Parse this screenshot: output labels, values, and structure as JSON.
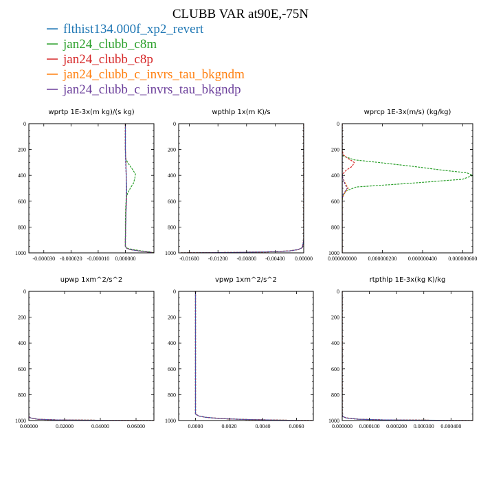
{
  "title": "CLUBB VAR at90E,-75N",
  "legend": [
    {
      "label": "flthist134.000f_xp2_revert",
      "color": "#1f77b4"
    },
    {
      "label": "jan24_clubb_c8m",
      "color": "#2ca02c"
    },
    {
      "label": "jan24_clubb_c8p",
      "color": "#d62728"
    },
    {
      "label": "jan24_clubb_c_invrs_tau_bkgndm",
      "color": "#ff7f0e"
    },
    {
      "label": "jan24_clubb_c_invrs_tau_bkgndp",
      "color": "#6a3d9a"
    }
  ],
  "chart_data": [
    {
      "type": "line",
      "title": "wprtp  1E-3x(m kg)/(s kg)",
      "xlim": [
        -3.55e-05,
        1.05e-05
      ],
      "ylim": [
        0,
        1000
      ],
      "y_inverted": true,
      "xticks": [
        -3e-05,
        -2e-05,
        -1e-05,
        0
      ],
      "xtick_labels": [
        "-0.000030",
        "-0.000020",
        "-0.000010",
        "0.000000"
      ],
      "yticks": [
        0,
        200,
        400,
        600,
        800,
        1000
      ],
      "series": [
        {
          "y": [
            0,
            100,
            200,
            300,
            400,
            500,
            600,
            700,
            800,
            900,
            950,
            965,
            975,
            985,
            992,
            1000
          ],
          "values": [
            0,
            0,
            0,
            2e-07,
            3e-07,
            5e-07,
            4e-07,
            2e-07,
            1e-07,
            0,
            0,
            5e-07,
            2e-06,
            5e-06,
            8e-06,
            1.05e-05
          ]
        },
        {
          "y": [
            0,
            100,
            200,
            260,
            300,
            350,
            390,
            420,
            460,
            500,
            540,
            580,
            650,
            750,
            850,
            950,
            965,
            975,
            985,
            992,
            1000
          ],
          "values": [
            0,
            0,
            0,
            0,
            8e-07,
            2.5e-06,
            3.7e-06,
            3.5e-06,
            3e-06,
            1.8e-06,
            8e-07,
            3e-07,
            1e-07,
            0,
            0,
            0,
            8e-07,
            3e-06,
            6e-06,
            9e-06,
            1.05e-05
          ]
        },
        {
          "y": [
            0,
            100,
            200,
            300,
            400,
            500,
            600,
            700,
            800,
            900,
            950,
            965,
            975,
            985,
            992,
            1000
          ],
          "values": [
            0,
            0,
            0,
            2e-07,
            3e-07,
            4e-07,
            4e-07,
            2e-07,
            1e-07,
            0,
            0,
            5e-07,
            2e-06,
            5e-06,
            8e-06,
            1.05e-05
          ]
        },
        {
          "y": [
            0,
            100,
            200,
            300,
            400,
            500,
            600,
            700,
            800,
            900,
            950,
            965,
            975,
            985,
            992,
            1000
          ],
          "values": [
            0,
            0,
            0,
            2e-07,
            3e-07,
            4e-07,
            3e-07,
            2e-07,
            1e-07,
            0,
            0,
            5e-07,
            2e-06,
            5e-06,
            8e-06,
            1.05e-05
          ]
        },
        {
          "y": [
            0,
            100,
            200,
            300,
            400,
            500,
            600,
            700,
            800,
            900,
            950,
            965,
            975,
            985,
            992,
            1000
          ],
          "values": [
            0,
            0,
            0,
            1e-07,
            3e-07,
            4e-07,
            3e-07,
            2e-07,
            1e-07,
            0,
            0,
            5e-07,
            2e-06,
            5e-06,
            8e-06,
            1.05e-05
          ]
        }
      ]
    },
    {
      "type": "line",
      "title": "wpthlp  1x(m K)/s",
      "xlim": [
        -0.0175,
        0
      ],
      "ylim": [
        0,
        1000
      ],
      "y_inverted": true,
      "xticks": [
        -0.016,
        -0.012,
        -0.008,
        -0.004,
        0
      ],
      "xtick_labels": [
        "-0.01600",
        "-0.01200",
        "-0.00800",
        "-0.00400",
        "0.00000"
      ],
      "yticks": [
        0,
        200,
        400,
        600,
        800,
        1000
      ],
      "series": [
        {
          "y": [
            0,
            200,
            400,
            600,
            800,
            900,
            960,
            975,
            985,
            992,
            997,
            1000
          ],
          "values": [
            0,
            0,
            0,
            0,
            0,
            0,
            -0.0002,
            -0.0008,
            -0.002,
            -0.005,
            -0.01,
            -0.0172
          ]
        },
        {
          "y": [
            0,
            200,
            400,
            600,
            800,
            900,
            960,
            975,
            985,
            992,
            997,
            1000
          ],
          "values": [
            0,
            0,
            0,
            0,
            0,
            0,
            -0.0002,
            -0.0008,
            -0.002,
            -0.005,
            -0.01,
            -0.0172
          ]
        },
        {
          "y": [
            0,
            200,
            400,
            600,
            800,
            900,
            960,
            975,
            985,
            992,
            997,
            1000
          ],
          "values": [
            0,
            0,
            0,
            0,
            0,
            0,
            -0.0002,
            -0.0008,
            -0.002,
            -0.005,
            -0.01,
            -0.0172
          ]
        },
        {
          "y": [
            0,
            200,
            400,
            600,
            800,
            900,
            960,
            975,
            985,
            992,
            997,
            1000
          ],
          "values": [
            0,
            0,
            0,
            0,
            0,
            0,
            -0.0002,
            -0.0008,
            -0.002,
            -0.005,
            -0.01,
            -0.0172
          ]
        },
        {
          "y": [
            0,
            200,
            400,
            600,
            800,
            900,
            960,
            975,
            985,
            992,
            997,
            1000
          ],
          "values": [
            0,
            0,
            0,
            0,
            0,
            0,
            -0.0002,
            -0.0008,
            -0.002,
            -0.005,
            -0.01,
            -0.0172
          ]
        }
      ]
    },
    {
      "type": "line",
      "title": "wprcp  1E-3x(m/s) (kg/kg)",
      "xlim": [
        0,
        6.5e-07
      ],
      "ylim": [
        0,
        1000
      ],
      "y_inverted": true,
      "xticks": [
        0,
        2e-07,
        4e-07,
        6e-07
      ],
      "xtick_labels": [
        "0.000000000",
        "0.000000200",
        "0.000000400",
        "0.000000600"
      ],
      "yticks": [
        0,
        200,
        400,
        600,
        800,
        1000
      ],
      "series": [
        {
          "y": [
            0,
            200,
            300,
            400,
            500,
            600,
            800,
            970,
            1000
          ],
          "values": [
            0,
            0,
            0,
            0,
            0,
            0,
            0,
            0,
            0
          ]
        },
        {
          "y": [
            0,
            200,
            250,
            280,
            300,
            330,
            360,
            380,
            400,
            430,
            460,
            490,
            520,
            560,
            600,
            800,
            1000
          ],
          "values": [
            0,
            0,
            5e-09,
            6e-08,
            1.8e-07,
            3.5e-07,
            5e-07,
            6.2e-07,
            6.5e-07,
            6e-07,
            3.5e-07,
            7e-08,
            2e-08,
            3e-09,
            0,
            0,
            0
          ]
        },
        {
          "y": [
            0,
            200,
            240,
            270,
            300,
            330,
            360,
            380,
            400,
            500,
            800,
            1000
          ],
          "values": [
            0,
            0,
            5e-09,
            3e-08,
            6e-08,
            5e-08,
            2e-08,
            8e-09,
            0,
            0,
            0,
            0
          ]
        },
        {
          "y": [
            0,
            200,
            380,
            420,
            460,
            500,
            540,
            580,
            800,
            1000
          ],
          "values": [
            0,
            0,
            0,
            3e-09,
            1.5e-08,
            3e-08,
            1e-08,
            0,
            0,
            0
          ]
        },
        {
          "y": [
            0,
            200,
            380,
            420,
            460,
            500,
            540,
            580,
            800,
            1000
          ],
          "values": [
            0,
            0,
            0,
            3e-09,
            1.2e-08,
            2.5e-08,
            8e-09,
            0,
            0,
            0
          ]
        }
      ]
    },
    {
      "type": "line",
      "title": "upwp  1xm^2/s^2",
      "xlim": [
        0,
        0.07
      ],
      "ylim": [
        0,
        1000
      ],
      "y_inverted": true,
      "xticks": [
        0,
        0.02,
        0.04,
        0.06
      ],
      "xtick_labels": [
        "0.00000",
        "0.02000",
        "0.04000",
        "0.06000"
      ],
      "yticks": [
        0,
        200,
        400,
        600,
        800,
        1000
      ],
      "series": [
        {
          "y": [
            970,
            980,
            990,
            995,
            998,
            1000
          ],
          "values": [
            0,
            0.001,
            0.005,
            0.015,
            0.04,
            0.07
          ]
        },
        {
          "y": [
            970,
            980,
            990,
            995,
            998,
            1000
          ],
          "values": [
            0,
            0.001,
            0.005,
            0.015,
            0.04,
            0.07
          ]
        },
        {
          "y": [
            970,
            980,
            990,
            995,
            998,
            1000
          ],
          "values": [
            0,
            0.001,
            0.005,
            0.015,
            0.04,
            0.07
          ]
        },
        {
          "y": [
            970,
            980,
            990,
            995,
            998,
            1000
          ],
          "values": [
            0,
            0.001,
            0.005,
            0.015,
            0.04,
            0.07
          ]
        },
        {
          "y": [
            970,
            980,
            990,
            995,
            998,
            1000
          ],
          "values": [
            0,
            0.001,
            0.005,
            0.015,
            0.04,
            0.07
          ]
        }
      ]
    },
    {
      "type": "line",
      "title": "vpwp  1xm^2/s^2",
      "xlim": [
        -0.001,
        0.007
      ],
      "ylim": [
        0,
        1000
      ],
      "y_inverted": true,
      "xticks": [
        0,
        0.002,
        0.004,
        0.006
      ],
      "xtick_labels": [
        "0.0000",
        "0.0020",
        "0.0040",
        "0.0060"
      ],
      "yticks": [
        0,
        200,
        400,
        600,
        800,
        1000
      ],
      "series": [
        {
          "y": [
            0,
            200,
            400,
            600,
            800,
            950,
            965,
            975,
            985,
            992,
            997,
            1000
          ],
          "values": [
            0,
            0,
            0,
            0,
            0,
            0,
            0.0002,
            0.0006,
            0.0015,
            0.003,
            0.005,
            0.007
          ]
        },
        {
          "y": [
            0,
            200,
            400,
            600,
            800,
            950,
            965,
            975,
            985,
            992,
            997,
            1000
          ],
          "values": [
            0,
            0,
            0,
            0,
            0,
            0,
            0.0002,
            0.0006,
            0.0015,
            0.003,
            0.005,
            0.007
          ]
        },
        {
          "y": [
            0,
            200,
            400,
            600,
            800,
            950,
            965,
            975,
            985,
            992,
            997,
            1000
          ],
          "values": [
            0,
            0,
            0,
            0,
            0,
            0,
            0.0002,
            0.0006,
            0.0015,
            0.003,
            0.005,
            0.007
          ]
        },
        {
          "y": [
            0,
            200,
            400,
            600,
            800,
            950,
            965,
            975,
            985,
            992,
            997,
            1000
          ],
          "values": [
            0,
            0,
            0,
            0,
            0,
            0,
            0.0002,
            0.0006,
            0.0015,
            0.003,
            0.005,
            0.007
          ]
        },
        {
          "y": [
            0,
            200,
            400,
            600,
            800,
            950,
            965,
            975,
            985,
            992,
            997,
            1000
          ],
          "values": [
            0,
            0,
            0,
            0,
            0,
            0,
            0.0002,
            0.0006,
            0.0015,
            0.003,
            0.005,
            0.007
          ]
        }
      ]
    },
    {
      "type": "line",
      "title": "rtpthlp  1E-3x(kg K)/kg",
      "xlim": [
        0,
        0.00048
      ],
      "ylim": [
        0,
        1000
      ],
      "y_inverted": true,
      "xticks": [
        0,
        0.0001,
        0.0002,
        0.0003,
        0.0004
      ],
      "xtick_labels": [
        "0.000000",
        "0.000100",
        "0.000200",
        "0.000300",
        "0.000400"
      ],
      "yticks": [
        0,
        200,
        400,
        600,
        800,
        1000
      ],
      "series": [
        {
          "y": [
            0,
            200,
            400,
            600,
            800,
            960,
            970,
            980,
            990,
            995,
            998,
            1000
          ],
          "values": [
            0,
            0,
            0,
            0,
            0,
            0,
            3e-06,
            1.5e-05,
            6e-05,
            0.00015,
            0.00035,
            0.00048
          ]
        },
        {
          "y": [
            0,
            200,
            400,
            600,
            800,
            960,
            970,
            980,
            990,
            995,
            998,
            1000
          ],
          "values": [
            0,
            0,
            0,
            0,
            0,
            0,
            3e-06,
            1.5e-05,
            6e-05,
            0.00015,
            0.00035,
            0.00048
          ]
        },
        {
          "y": [
            0,
            200,
            400,
            600,
            800,
            960,
            970,
            980,
            990,
            995,
            998,
            1000
          ],
          "values": [
            0,
            0,
            0,
            0,
            0,
            0,
            3e-06,
            1.5e-05,
            6e-05,
            0.00015,
            0.00035,
            0.00048
          ]
        },
        {
          "y": [
            0,
            200,
            400,
            600,
            800,
            960,
            970,
            980,
            990,
            995,
            998,
            1000
          ],
          "values": [
            0,
            0,
            0,
            0,
            0,
            0,
            3e-06,
            1.5e-05,
            6e-05,
            0.00015,
            0.00035,
            0.00048
          ]
        },
        {
          "y": [
            0,
            200,
            400,
            600,
            800,
            960,
            970,
            980,
            990,
            995,
            998,
            1000
          ],
          "values": [
            0,
            0,
            0,
            0,
            0,
            0,
            3e-06,
            1.5e-05,
            6e-05,
            0.00015,
            0.00035,
            0.00048
          ]
        }
      ]
    }
  ]
}
